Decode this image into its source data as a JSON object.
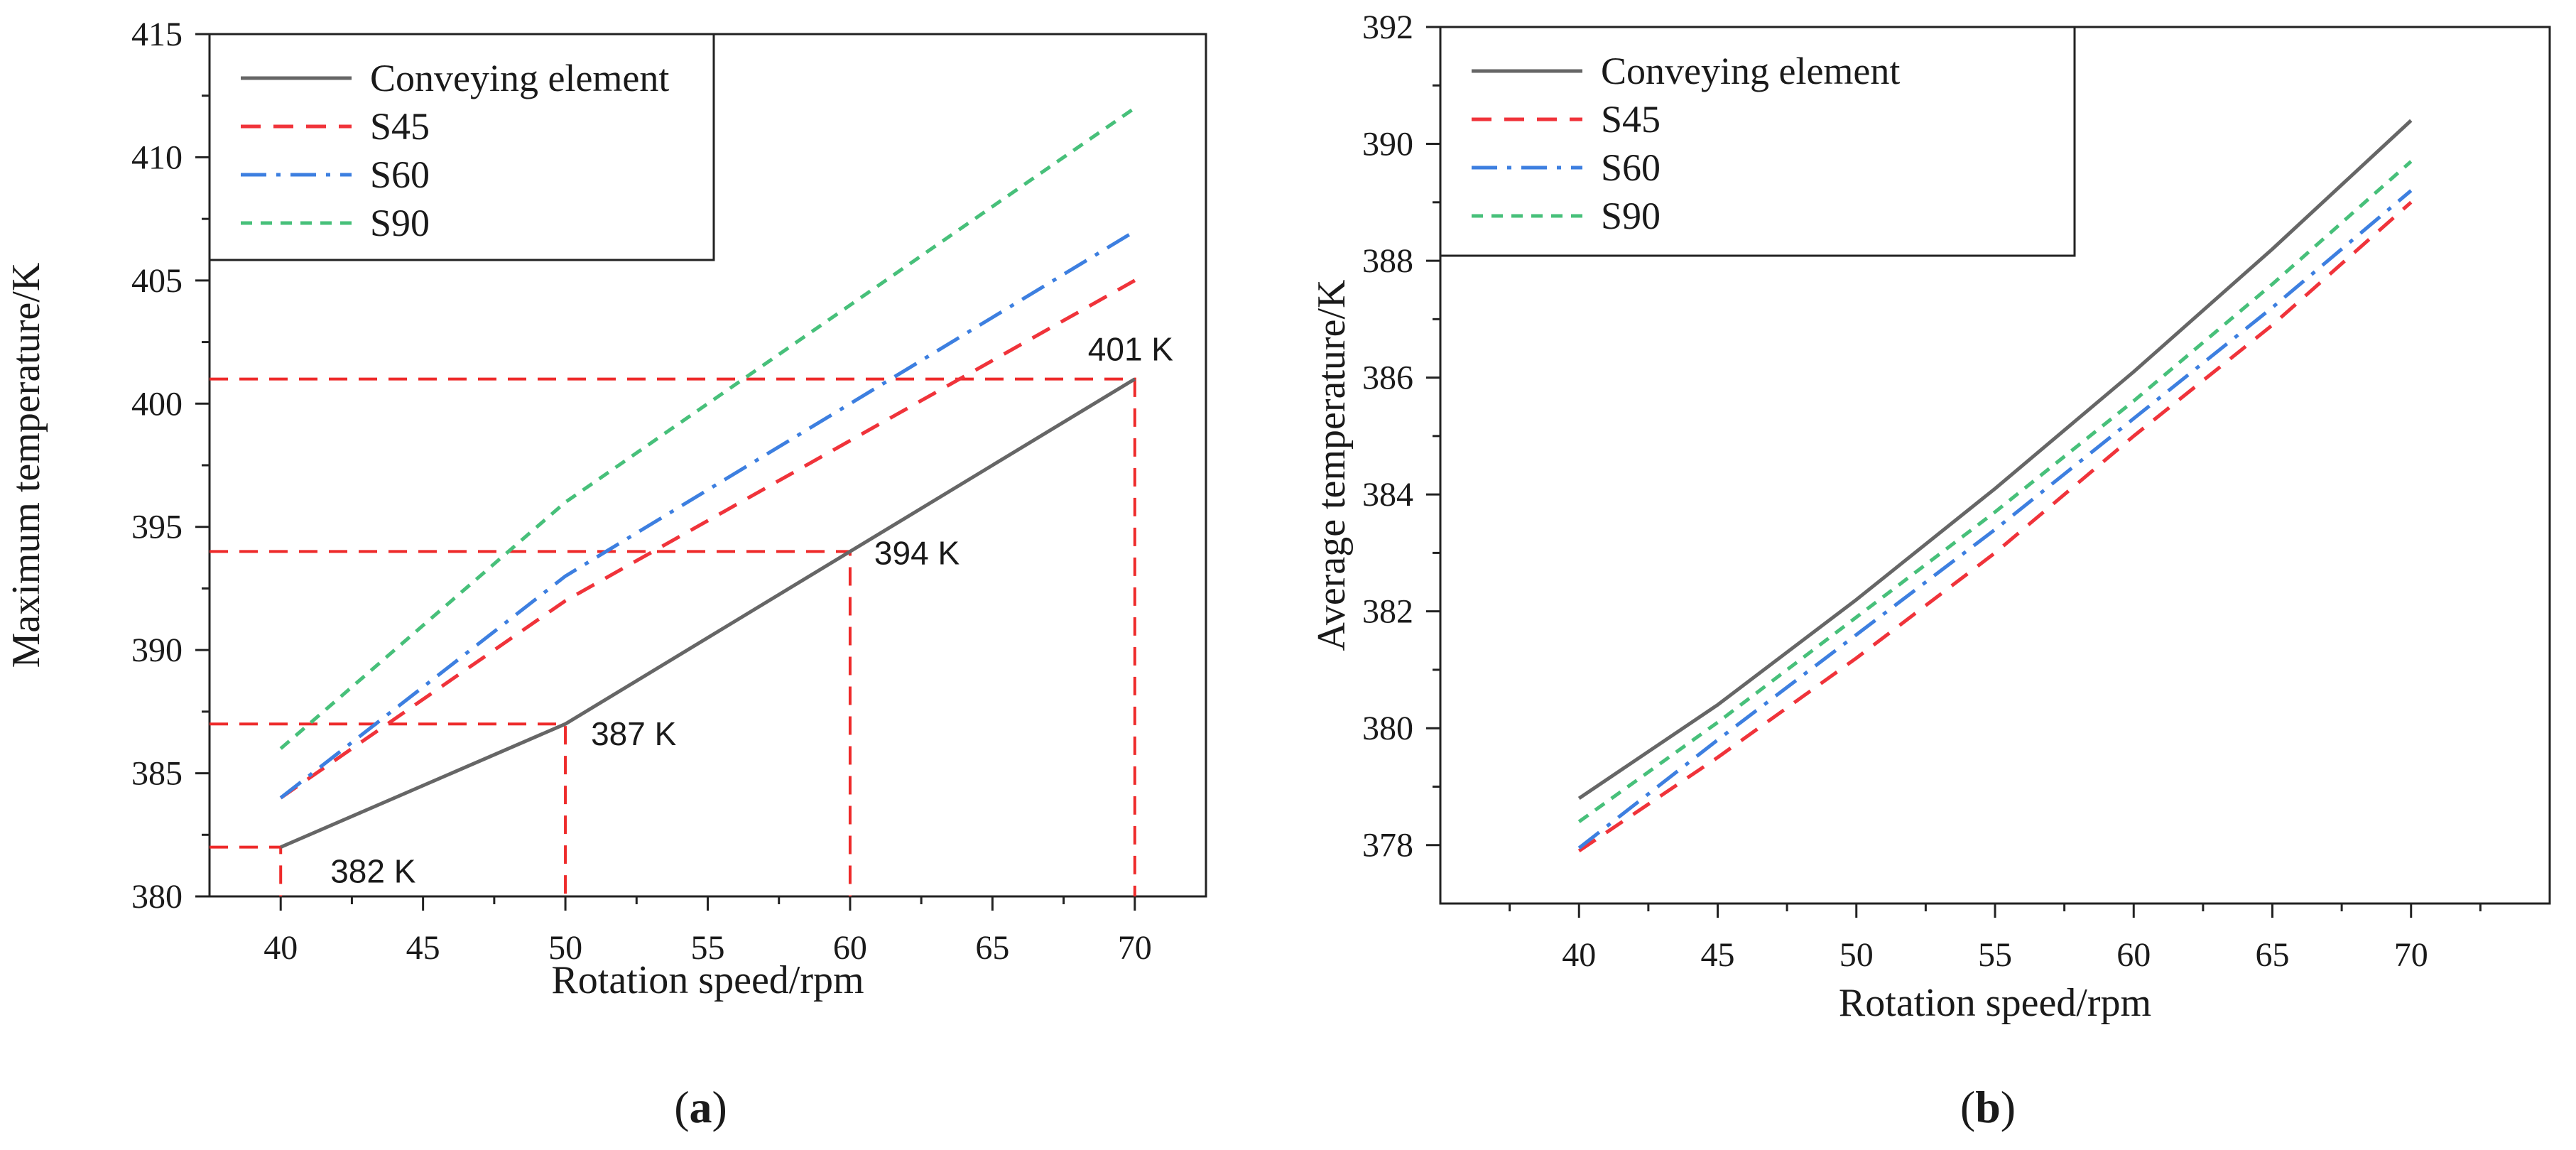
{
  "colors": {
    "Conveying element": "#666666",
    "S45": "#f0333a",
    "S60": "#3d7fe0",
    "S90": "#47c07a",
    "guide": "#ee2a2a",
    "axis": "#222222"
  },
  "chart_data": [
    {
      "type": "line",
      "panel_label": "a",
      "xlabel": "Rotation speed/rpm",
      "ylabel": "Maximum temperature/K",
      "xlim": [
        37.5,
        72.5
      ],
      "ylim": [
        380,
        415
      ],
      "xticks": [
        40,
        45,
        50,
        55,
        60,
        65,
        70
      ],
      "yticks": [
        380,
        385,
        390,
        395,
        400,
        405,
        410,
        415
      ],
      "legend": {
        "location": "top-left",
        "entries": [
          "Conveying element",
          "S45",
          "S60",
          "S90"
        ]
      },
      "series": [
        {
          "name": "Conveying element",
          "style": "solid",
          "x": [
            40,
            50,
            60,
            70
          ],
          "y": [
            382,
            387,
            394,
            401
          ]
        },
        {
          "name": "S45",
          "style": "dashed",
          "x": [
            40,
            50,
            60,
            70
          ],
          "y": [
            384,
            392,
            398.5,
            405
          ]
        },
        {
          "name": "S60",
          "style": "dashdot",
          "x": [
            40,
            50,
            60,
            70
          ],
          "y": [
            384,
            393,
            400,
            407
          ]
        },
        {
          "name": "S90",
          "style": "shortdash",
          "x": [
            40,
            50,
            60,
            70
          ],
          "y": [
            386,
            396,
            404,
            412
          ]
        }
      ],
      "annotations": [
        {
          "label": "382 K",
          "x": 40,
          "y": 382
        },
        {
          "label": "387 K",
          "x": 50,
          "y": 387
        },
        {
          "label": "394 K",
          "x": 60,
          "y": 394
        },
        {
          "label": "401 K",
          "x": 70,
          "y": 401
        }
      ],
      "guide_lines": [
        {
          "x": 40,
          "y": 382
        },
        {
          "x": 50,
          "y": 387
        },
        {
          "x": 60,
          "y": 394
        },
        {
          "x": 70,
          "y": 401
        }
      ]
    },
    {
      "type": "line",
      "panel_label": "b",
      "xlabel": "Rotation speed/rpm",
      "ylabel": "Average temperature/K",
      "xlim": [
        35,
        75
      ],
      "ylim": [
        377,
        392
      ],
      "xticks": [
        40,
        45,
        50,
        55,
        60,
        65,
        70
      ],
      "yticks": [
        378,
        380,
        382,
        384,
        386,
        388,
        390,
        392
      ],
      "legend": {
        "location": "top-left",
        "entries": [
          "Conveying element",
          "S45",
          "S60",
          "S90"
        ]
      },
      "series": [
        {
          "name": "Conveying element",
          "style": "solid",
          "x": [
            40,
            45,
            50,
            55,
            60,
            65,
            70
          ],
          "y": [
            378.8,
            380.4,
            382.2,
            384.1,
            386.1,
            388.2,
            390.4
          ]
        },
        {
          "name": "S45",
          "style": "dashed",
          "x": [
            40,
            45,
            50,
            55,
            60,
            65,
            70
          ],
          "y": [
            377.9,
            379.5,
            381.2,
            383.0,
            385.0,
            386.9,
            389.0
          ]
        },
        {
          "name": "S60",
          "style": "dashdot",
          "x": [
            40,
            45,
            50,
            55,
            60,
            65,
            70
          ],
          "y": [
            377.95,
            379.8,
            381.6,
            383.4,
            385.3,
            387.2,
            389.2
          ]
        },
        {
          "name": "S90",
          "style": "shortdash",
          "x": [
            40,
            45,
            50,
            55,
            60,
            65,
            70
          ],
          "y": [
            378.4,
            380.1,
            381.9,
            383.7,
            385.6,
            387.6,
            389.7
          ]
        }
      ]
    }
  ]
}
